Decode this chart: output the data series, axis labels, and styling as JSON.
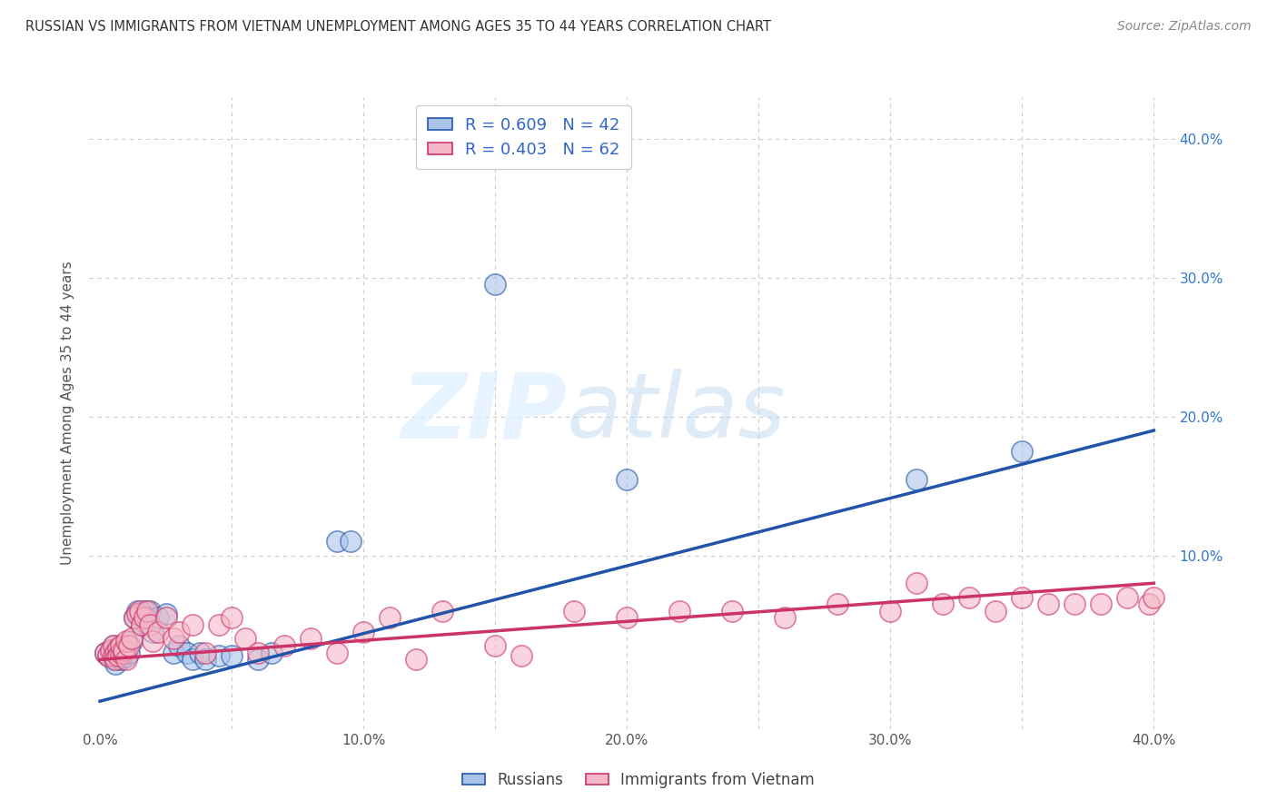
{
  "title": "RUSSIAN VS IMMIGRANTS FROM VIETNAM UNEMPLOYMENT AMONG AGES 35 TO 44 YEARS CORRELATION CHART",
  "source": "Source: ZipAtlas.com",
  "ylabel": "Unemployment Among Ages 35 to 44 years",
  "xlim": [
    0.0,
    0.4
  ],
  "ylim": [
    -0.02,
    0.42
  ],
  "xtick_labels": [
    "0.0%",
    "",
    "10.0%",
    "",
    "20.0%",
    "",
    "30.0%",
    "",
    "40.0%"
  ],
  "xtick_vals": [
    0.0,
    0.05,
    0.1,
    0.15,
    0.2,
    0.25,
    0.3,
    0.35,
    0.4
  ],
  "ytick_labels": [
    "10.0%",
    "20.0%",
    "30.0%",
    "40.0%"
  ],
  "ytick_vals": [
    0.1,
    0.2,
    0.3,
    0.4
  ],
  "grid_color": "#cccccc",
  "background_color": "#ffffff",
  "watermark_zip": "ZIP",
  "watermark_atlas": "atlas",
  "legend_R1": "R = 0.609",
  "legend_N1": "N = 42",
  "legend_R2": "R = 0.403",
  "legend_N2": "N = 62",
  "blue_color": "#aac4e8",
  "pink_color": "#f5b8c8",
  "line_blue": "#2255aa",
  "line_pink": "#cc3366",
  "russian_x": [
    0.002,
    0.003,
    0.004,
    0.005,
    0.005,
    0.006,
    0.006,
    0.007,
    0.007,
    0.008,
    0.008,
    0.009,
    0.01,
    0.01,
    0.011,
    0.012,
    0.013,
    0.014,
    0.015,
    0.016,
    0.017,
    0.018,
    0.019,
    0.02,
    0.022,
    0.025,
    0.028,
    0.03,
    0.033,
    0.035,
    0.038,
    0.04,
    0.045,
    0.05,
    0.06,
    0.065,
    0.09,
    0.095,
    0.15,
    0.2,
    0.31,
    0.35
  ],
  "russian_y": [
    0.03,
    0.028,
    0.032,
    0.025,
    0.035,
    0.022,
    0.03,
    0.028,
    0.033,
    0.025,
    0.03,
    0.032,
    0.027,
    0.035,
    0.03,
    0.038,
    0.055,
    0.06,
    0.058,
    0.05,
    0.06,
    0.055,
    0.06,
    0.045,
    0.055,
    0.058,
    0.03,
    0.035,
    0.03,
    0.025,
    0.03,
    0.025,
    0.028,
    0.028,
    0.025,
    0.03,
    0.11,
    0.11,
    0.295,
    0.155,
    0.155,
    0.175
  ],
  "vietnam_x": [
    0.002,
    0.003,
    0.004,
    0.005,
    0.005,
    0.006,
    0.006,
    0.007,
    0.007,
    0.008,
    0.008,
    0.009,
    0.009,
    0.01,
    0.01,
    0.011,
    0.012,
    0.013,
    0.014,
    0.015,
    0.016,
    0.017,
    0.018,
    0.019,
    0.02,
    0.022,
    0.025,
    0.028,
    0.03,
    0.035,
    0.04,
    0.045,
    0.05,
    0.055,
    0.06,
    0.07,
    0.08,
    0.09,
    0.1,
    0.11,
    0.12,
    0.13,
    0.15,
    0.16,
    0.18,
    0.2,
    0.22,
    0.24,
    0.26,
    0.28,
    0.3,
    0.31,
    0.32,
    0.33,
    0.34,
    0.35,
    0.36,
    0.37,
    0.38,
    0.39,
    0.398,
    0.4
  ],
  "vietnam_y": [
    0.03,
    0.028,
    0.032,
    0.028,
    0.035,
    0.03,
    0.025,
    0.033,
    0.028,
    0.03,
    0.035,
    0.03,
    0.032,
    0.025,
    0.038,
    0.035,
    0.04,
    0.055,
    0.058,
    0.06,
    0.05,
    0.055,
    0.06,
    0.05,
    0.038,
    0.045,
    0.055,
    0.04,
    0.045,
    0.05,
    0.03,
    0.05,
    0.055,
    0.04,
    0.03,
    0.035,
    0.04,
    0.03,
    0.045,
    0.055,
    0.025,
    0.06,
    0.035,
    0.028,
    0.06,
    0.055,
    0.06,
    0.06,
    0.055,
    0.065,
    0.06,
    0.08,
    0.065,
    0.07,
    0.06,
    0.07,
    0.065,
    0.065,
    0.065,
    0.07,
    0.065,
    0.07
  ]
}
